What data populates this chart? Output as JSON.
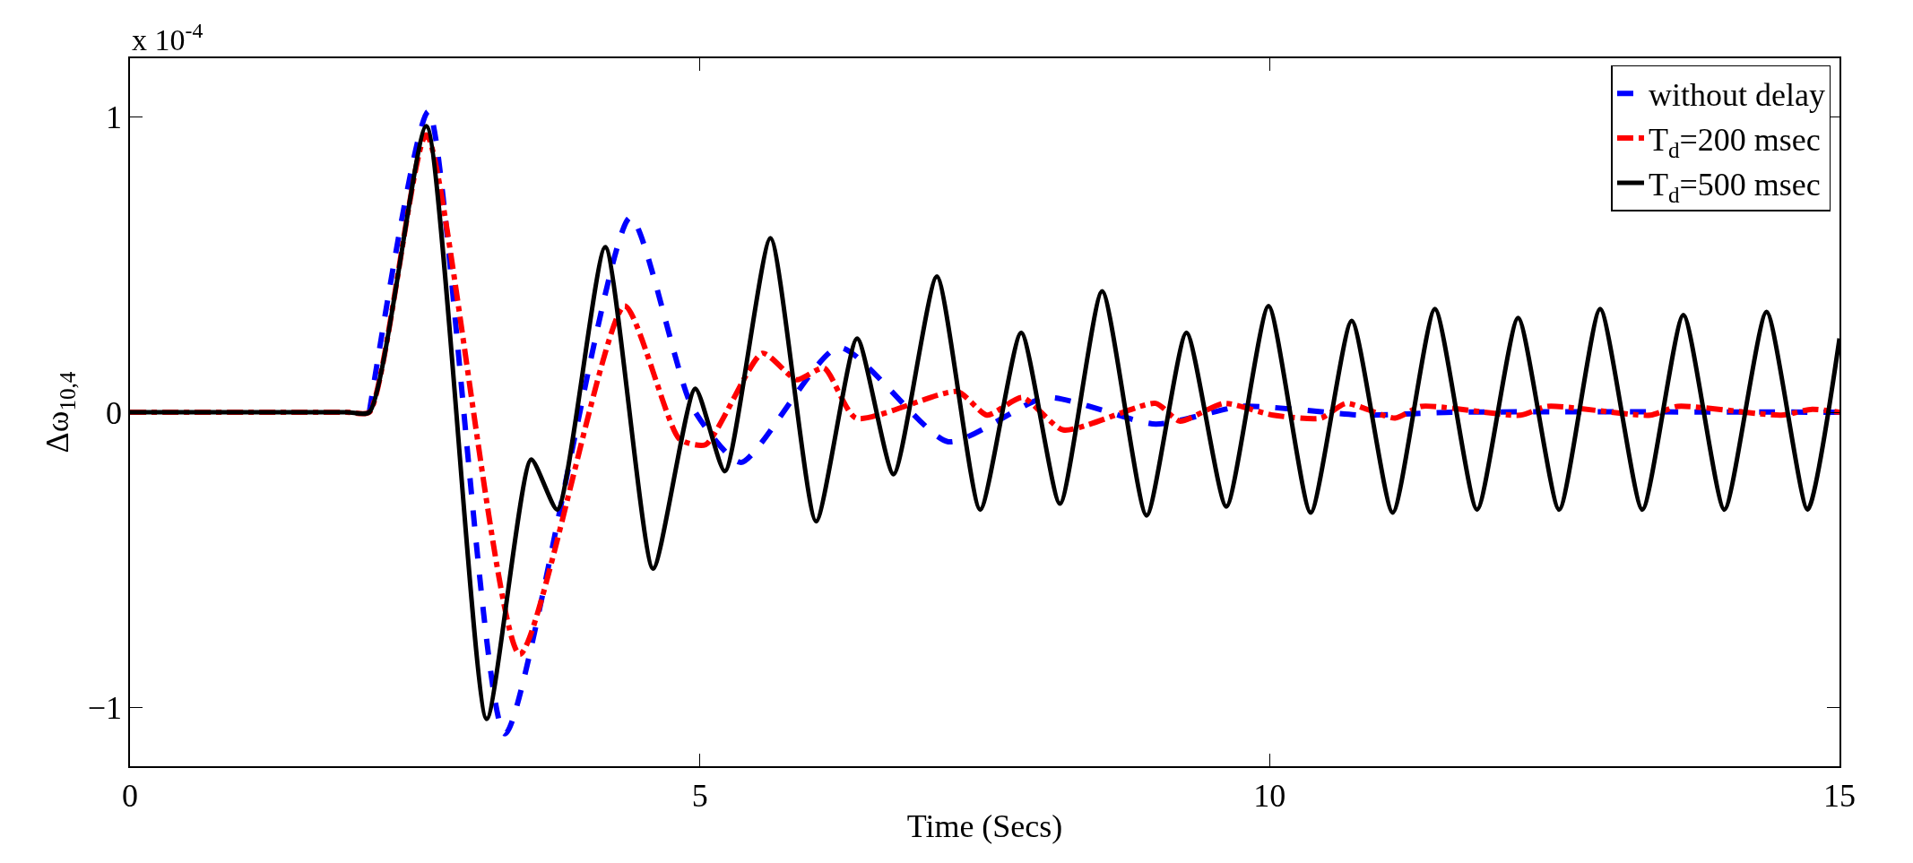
{
  "chart_data": {
    "type": "line",
    "xlabel": "Time (Secs)",
    "ylabel": "Δω$_{10,4}$",
    "annotations": [
      "x 10$^{-4}$"
    ],
    "xlim": [
      0,
      15
    ],
    "xticks": [
      0,
      5,
      10,
      15
    ],
    "ylim": [
      -1.2,
      1.2
    ],
    "yticks": [
      -1,
      0,
      1
    ],
    "legend": "top right",
    "series": [
      {
        "name": "without delay",
        "color": "#0000ff",
        "line_style": "dashed",
        "x": [
          2.1,
          2.62,
          3.29,
          4.39,
          4.93,
          5.36,
          6.22,
          7.18,
          8.04,
          9.0,
          9.76,
          10.82,
          11.6,
          15
        ],
        "values": [
          0,
          1.02,
          -1.09,
          0.66,
          0.02,
          -0.17,
          0.22,
          -0.1,
          0.05,
          -0.04,
          0.02,
          -0.01,
          0,
          0
        ]
      },
      {
        "name": "T$_{d}$=200 msec",
        "color": "#ff0000",
        "line_style": "dashdot",
        "x": [
          0,
          1.9,
          2.1,
          2.6,
          3.42,
          4.34,
          4.82,
          5.05,
          5.55,
          5.85,
          6.09,
          6.37,
          7.26,
          7.52,
          7.83,
          8.19,
          9.0,
          9.21,
          9.6,
          10.03,
          10.45,
          10.67,
          11.1,
          11.33,
          12.2,
          12.44,
          13.34,
          13.58,
          14.49,
          14.76,
          15
        ],
        "values": [
          0,
          0,
          0,
          0.94,
          -0.82,
          0.36,
          -0.09,
          -0.11,
          0.2,
          0.11,
          0.15,
          -0.02,
          0.07,
          -0.01,
          0.05,
          -0.06,
          0.03,
          -0.03,
          0.03,
          -0.01,
          -0.02,
          0.03,
          -0.02,
          0.02,
          -0.01,
          0.02,
          -0.01,
          0.02,
          -0.01,
          0.01,
          0
        ]
      },
      {
        "name": "T$_{d}$=500 msec",
        "color": "#000000",
        "line_style": "solid",
        "x": [
          0,
          1.9,
          2.1,
          2.6,
          3.13,
          3.52,
          3.75,
          4.17,
          4.59,
          4.96,
          5.22,
          5.62,
          6.02,
          6.38,
          6.7,
          7.08,
          7.46,
          7.82,
          8.16,
          8.53,
          8.92,
          9.27,
          9.62,
          9.99,
          10.36,
          10.72,
          11.08,
          11.45,
          11.82,
          12.18,
          12.54,
          12.9,
          13.27,
          13.63,
          13.99,
          14.36,
          14.72,
          15
        ],
        "values": [
          0,
          0,
          0,
          0.97,
          -1.04,
          -0.16,
          -0.33,
          0.56,
          -0.53,
          0.08,
          -0.2,
          0.59,
          -0.37,
          0.25,
          -0.21,
          0.46,
          -0.33,
          0.27,
          -0.31,
          0.41,
          -0.35,
          0.27,
          -0.32,
          0.36,
          -0.34,
          0.31,
          -0.34,
          0.35,
          -0.33,
          0.32,
          -0.33,
          0.35,
          -0.33,
          0.33,
          -0.33,
          0.34,
          -0.33,
          0.25
        ]
      }
    ]
  }
}
